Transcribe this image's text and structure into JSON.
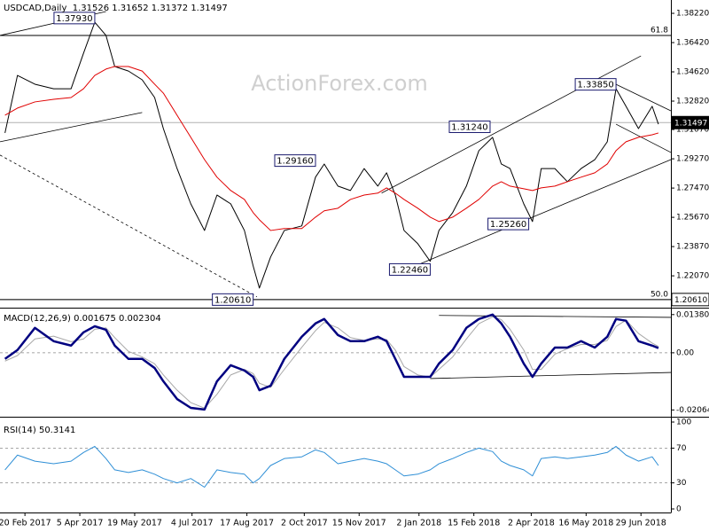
{
  "chart_data": [
    {
      "type": "line",
      "title": "USDCAD,Daily  1.31526 1.31652 1.31372 1.31497",
      "watermark": "ActionForex.com",
      "x": [
        "2017-02-04",
        "2017-02-14",
        "2017-02-28",
        "2017-03-15",
        "2017-03-29",
        "2017-04-08",
        "2017-04-17",
        "2017-04-26",
        "2017-05-03",
        "2017-05-14",
        "2017-05-25",
        "2017-06-04",
        "2017-06-11",
        "2017-06-22",
        "2017-07-03",
        "2017-07-14",
        "2017-07-24",
        "2017-08-04",
        "2017-08-15",
        "2017-08-22",
        "2017-08-27",
        "2017-09-05",
        "2017-09-16",
        "2017-09-30",
        "2017-10-11",
        "2017-10-18",
        "2017-10-29",
        "2017-11-08",
        "2017-11-19",
        "2017-11-30",
        "2017-12-07",
        "2017-12-14",
        "2017-12-21",
        "2018-01-01",
        "2018-01-11",
        "2018-01-18",
        "2018-01-29",
        "2018-02-09",
        "2018-02-19",
        "2018-03-02",
        "2018-03-09",
        "2018-03-16",
        "2018-03-27",
        "2018-04-03",
        "2018-04-10",
        "2018-04-21",
        "2018-05-01",
        "2018-05-12",
        "2018-05-23",
        "2018-06-02",
        "2018-06-09",
        "2018-06-17",
        "2018-06-27",
        "2018-07-08",
        "2018-07-13"
      ],
      "xlim": [
        "2017-01-31",
        "2018-07-23"
      ],
      "series": [
        {
          "color": "#000000",
          "width": 1,
          "values": [
            1.3086,
            1.344,
            1.3386,
            1.3358,
            1.3358,
            1.3577,
            1.3767,
            1.3686,
            1.3495,
            1.3467,
            1.3413,
            1.3304,
            1.3113,
            1.2867,
            1.265,
            1.2486,
            1.2704,
            1.265,
            1.2486,
            1.2268,
            1.2132,
            1.2323,
            1.2486,
            1.2514,
            1.2814,
            1.2895,
            1.2759,
            1.2732,
            1.2867,
            1.2759,
            1.2841,
            1.2704,
            1.2486,
            1.2405,
            1.2296,
            1.2486,
            1.2596,
            1.2759,
            1.2977,
            1.3059,
            1.2895,
            1.2867,
            1.265,
            1.2541,
            1.2867,
            1.2867,
            1.2786,
            1.2867,
            1.2922,
            1.3032,
            1.3358,
            1.325,
            1.3113,
            1.325,
            1.314
          ]
        },
        {
          "color": "#e00000",
          "width": 1,
          "values": [
            1.3195,
            1.3239,
            1.3277,
            1.3293,
            1.3304,
            1.3358,
            1.344,
            1.3479,
            1.3495,
            1.3495,
            1.3467,
            1.3386,
            1.3331,
            1.3195,
            1.3059,
            1.2922,
            1.2814,
            1.2732,
            1.2677,
            1.2596,
            1.2552,
            1.2486,
            1.2498,
            1.2498,
            1.2568,
            1.2607,
            1.2623,
            1.2677,
            1.2704,
            1.2716,
            1.2748,
            1.2716,
            1.2677,
            1.2623,
            1.2568,
            1.2541,
            1.2568,
            1.2623,
            1.2677,
            1.2759,
            1.2786,
            1.2759,
            1.2743,
            1.2732,
            1.2748,
            1.2759,
            1.2786,
            1.2814,
            1.2841,
            1.2895,
            1.2977,
            1.3032,
            1.3059,
            1.3075,
            1.3086
          ]
        }
      ],
      "ylim": [
        1.2022,
        1.3904
      ],
      "yticks": [
        {
          "value": 1.3822,
          "label": "1.38220"
        },
        {
          "value": 1.3642,
          "label": "1.36420"
        },
        {
          "value": 1.3462,
          "label": "1.34620"
        },
        {
          "value": 1.3282,
          "label": "1.32820"
        },
        {
          "value": 1.3107,
          "label": "1.31070"
        },
        {
          "value": 1.2927,
          "label": "1.29270"
        },
        {
          "value": 1.2747,
          "label": "1.27470"
        },
        {
          "value": 1.2567,
          "label": "1.25670"
        },
        {
          "value": 1.2387,
          "label": "1.23870"
        },
        {
          "value": 1.2207,
          "label": "1.22070"
        }
      ],
      "fib_levels": [
        {
          "value": 1.3686,
          "label": "61.8"
        },
        {
          "value": 1.2061,
          "label": "50.0"
        }
      ],
      "axis_markers": [
        {
          "value": 1.31497,
          "label": "1.31497"
        },
        {
          "value": 1.2061,
          "label": "1.20610"
        }
      ],
      "trendlines": [
        {
          "x": [
            "2017-01-31",
            "2017-04-26"
          ],
          "y": [
            1.3686,
            1.3833
          ],
          "dashed": false
        },
        {
          "x": [
            "2017-01-31",
            "2017-05-25"
          ],
          "y": [
            1.3032,
            1.3212
          ],
          "dashed": false
        },
        {
          "x": [
            "2017-01-31",
            "2017-08-25"
          ],
          "y": [
            1.295,
            1.2078
          ],
          "dashed": true
        },
        {
          "x": [
            "2017-12-03",
            "2018-06-29"
          ],
          "y": [
            1.2716,
            1.356
          ],
          "dashed": false
        },
        {
          "x": [
            "2017-12-30",
            "2018-07-23"
          ],
          "y": [
            1.2268,
            1.2922
          ],
          "dashed": false
        },
        {
          "x": [
            "2018-06-09",
            "2018-07-23"
          ],
          "y": [
            1.3385,
            1.3222
          ],
          "dashed": false
        },
        {
          "x": [
            "2018-06-09",
            "2018-07-23"
          ],
          "y": [
            1.314,
            1.2966
          ],
          "dashed": false
        }
      ],
      "annotations": [
        {
          "x": "2017-04-17",
          "value": 1.3793,
          "label": "1.37930"
        },
        {
          "x": "2017-08-22",
          "value": 1.2061,
          "label": "1.20610"
        },
        {
          "x": "2017-10-11",
          "value": 1.2916,
          "label": "1.29160"
        },
        {
          "x": "2018-01-11",
          "value": 1.2246,
          "label": "1.22460"
        },
        {
          "x": "2018-02-28",
          "value": 1.3124,
          "label": "1.31240"
        },
        {
          "x": "2018-03-31",
          "value": 1.2526,
          "label": "1.25260"
        },
        {
          "x": "2018-06-09",
          "value": 1.3385,
          "label": "1.33850"
        }
      ]
    },
    {
      "type": "line",
      "title": "MACD(12,26,9) 0.001675 0.002304",
      "x": [
        "2017-02-04",
        "2017-02-14",
        "2017-02-28",
        "2017-03-15",
        "2017-03-29",
        "2017-04-08",
        "2017-04-17",
        "2017-04-26",
        "2017-05-03",
        "2017-05-14",
        "2017-05-25",
        "2017-06-04",
        "2017-06-11",
        "2017-06-22",
        "2017-07-03",
        "2017-07-14",
        "2017-07-24",
        "2017-08-04",
        "2017-08-15",
        "2017-08-22",
        "2017-08-27",
        "2017-09-05",
        "2017-09-16",
        "2017-09-30",
        "2017-10-11",
        "2017-10-18",
        "2017-10-29",
        "2017-11-08",
        "2017-11-19",
        "2017-11-30",
        "2017-12-07",
        "2017-12-14",
        "2017-12-21",
        "2018-01-01",
        "2018-01-11",
        "2018-01-18",
        "2018-01-29",
        "2018-02-09",
        "2018-02-19",
        "2018-03-02",
        "2018-03-09",
        "2018-03-16",
        "2018-03-27",
        "2018-04-03",
        "2018-04-10",
        "2018-04-21",
        "2018-05-01",
        "2018-05-12",
        "2018-05-23",
        "2018-06-02",
        "2018-06-09",
        "2018-06-17",
        "2018-06-27",
        "2018-07-08",
        "2018-07-13"
      ],
      "xlim": [
        "2017-01-31",
        "2018-07-23"
      ],
      "series": [
        {
          "color": "#a8a8a8",
          "width": 1,
          "values": [
            -0.003,
            -0.001,
            0.005,
            0.006,
            0.004,
            0.005,
            0.0085,
            0.009,
            0.0055,
            0.0005,
            -0.0015,
            -0.004,
            -0.008,
            -0.0135,
            -0.018,
            -0.02,
            -0.015,
            -0.008,
            -0.006,
            -0.0075,
            -0.011,
            -0.0125,
            -0.006,
            0.002,
            0.008,
            0.011,
            0.009,
            0.0055,
            0.0045,
            0.005,
            0.0048,
            0.001,
            -0.005,
            -0.008,
            -0.0088,
            -0.006,
            -0.0015,
            0.005,
            0.0105,
            0.013,
            0.012,
            0.0085,
            0.001,
            -0.006,
            -0.006,
            -0.0005,
            0.0015,
            0.003,
            0.003,
            0.0045,
            0.0095,
            0.0118,
            0.007,
            0.0035,
            0.0023
          ]
        },
        {
          "color": "#000080",
          "width": 2.5,
          "values": [
            -0.0022,
            0.001,
            0.009,
            0.0042,
            0.0026,
            0.0074,
            0.0096,
            0.0083,
            0.0026,
            -0.0022,
            -0.0022,
            -0.0055,
            -0.0103,
            -0.0167,
            -0.0199,
            -0.0205,
            -0.0103,
            -0.0045,
            -0.0064,
            -0.0087,
            -0.0135,
            -0.0119,
            -0.0022,
            0.0058,
            0.0106,
            0.0122,
            0.0064,
            0.0042,
            0.0042,
            0.0058,
            0.0042,
            -0.0022,
            -0.0087,
            -0.0087,
            -0.0087,
            -0.0039,
            0.001,
            0.009,
            0.0122,
            0.0138,
            0.0106,
            0.0058,
            -0.0039,
            -0.0087,
            -0.0039,
            0.0019,
            0.0019,
            0.0042,
            0.0019,
            0.0058,
            0.0122,
            0.0116,
            0.0042,
            0.0026,
            0.0017
          ]
        }
      ],
      "ylim": [
        -0.02214,
        0.01534
      ],
      "yticks": [
        {
          "value": 0.013802,
          "label": "0.013802"
        },
        {
          "value": 0,
          "label": "0.00"
        },
        {
          "value": -0.020648,
          "label": "-0.020648"
        }
      ],
      "reference_lines": [
        0
      ],
      "trendlines": [
        {
          "x": [
            "2018-01-18",
            "2018-07-23"
          ],
          "y": [
            0.0135,
            0.0128
          ],
          "dashed": false
        },
        {
          "x": [
            "2018-01-11",
            "2018-07-23"
          ],
          "y": [
            -0.0093,
            -0.0071
          ],
          "dashed": false
        }
      ]
    },
    {
      "type": "line",
      "title": "RSI(14) 50.3141",
      "x": [
        "2017-02-04",
        "2017-02-14",
        "2017-02-28",
        "2017-03-15",
        "2017-03-29",
        "2017-04-08",
        "2017-04-17",
        "2017-04-26",
        "2017-05-03",
        "2017-05-14",
        "2017-05-25",
        "2017-06-04",
        "2017-06-11",
        "2017-06-22",
        "2017-07-03",
        "2017-07-14",
        "2017-07-24",
        "2017-08-04",
        "2017-08-15",
        "2017-08-22",
        "2017-08-27",
        "2017-09-05",
        "2017-09-16",
        "2017-09-30",
        "2017-10-11",
        "2017-10-18",
        "2017-10-29",
        "2017-11-08",
        "2017-11-19",
        "2017-11-30",
        "2017-12-07",
        "2017-12-14",
        "2017-12-21",
        "2018-01-01",
        "2018-01-11",
        "2018-01-18",
        "2018-01-29",
        "2018-02-09",
        "2018-02-19",
        "2018-03-02",
        "2018-03-09",
        "2018-03-16",
        "2018-03-27",
        "2018-04-03",
        "2018-04-10",
        "2018-04-21",
        "2018-05-01",
        "2018-05-12",
        "2018-05-23",
        "2018-06-02",
        "2018-06-09",
        "2018-06-17",
        "2018-06-27",
        "2018-07-08",
        "2018-07-13"
      ],
      "xlim": [
        "2017-01-31",
        "2018-07-23"
      ],
      "series": [
        {
          "color": "#2f8fd6",
          "width": 1,
          "values": [
            45,
            62,
            55,
            52,
            55,
            65,
            72,
            58,
            45,
            42,
            45,
            40,
            35,
            30,
            35,
            25,
            45,
            42,
            40,
            30,
            35,
            50,
            58,
            60,
            68,
            65,
            52,
            55,
            58,
            55,
            52,
            45,
            38,
            40,
            45,
            52,
            58,
            65,
            70,
            66,
            55,
            50,
            45,
            38,
            58,
            60,
            58,
            60,
            62,
            65,
            72,
            62,
            55,
            60,
            50
          ]
        }
      ],
      "ylim": [
        0,
        100
      ],
      "yticks": [
        100,
        70,
        30,
        0
      ],
      "reference_lines": [
        70,
        30
      ],
      "xticks": [
        {
          "value": "2017-02-20",
          "label": "20 Feb 2017"
        },
        {
          "value": "2017-04-05",
          "label": "5 Apr 2017"
        },
        {
          "value": "2017-05-19",
          "label": "19 May 2017"
        },
        {
          "value": "2017-07-04",
          "label": "4 Jul 2017"
        },
        {
          "value": "2017-08-17",
          "label": "17 Aug 2017"
        },
        {
          "value": "2017-10-02",
          "label": "2 Oct 2017"
        },
        {
          "value": "2017-11-15",
          "label": "15 Nov 2017"
        },
        {
          "value": "2018-01-02",
          "label": "2 Jan 2018"
        },
        {
          "value": "2018-02-15",
          "label": "15 Feb 2018"
        },
        {
          "value": "2018-04-02",
          "label": "2 Apr 2018"
        },
        {
          "value": "2018-05-16",
          "label": "16 May 2018"
        },
        {
          "value": "2018-06-29",
          "label": "29 Jun 2018"
        }
      ]
    }
  ]
}
